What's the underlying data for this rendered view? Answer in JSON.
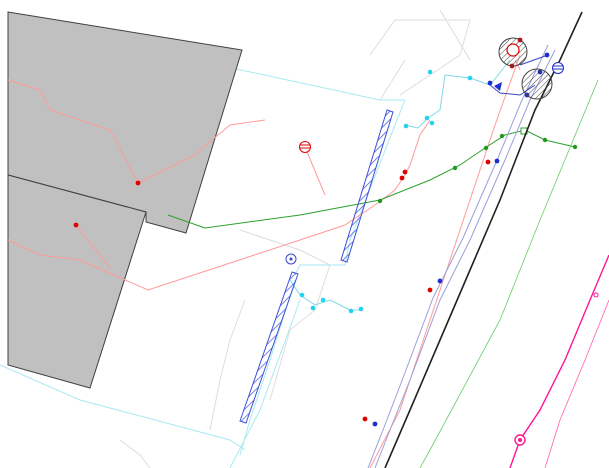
{
  "drawing": {
    "colors": {
      "background": "#ffffff",
      "building_fill": "#c0c0c0",
      "building_stroke": "#404040",
      "parcel_line": "#dddddd",
      "cyan_line": "#9de8ee",
      "cyan_node": "#22d3ee",
      "red_line": "#ff9a9a",
      "red_node": "#e00000",
      "blue_line": "#8a90d8",
      "blue_node": "#1e2fd0",
      "green_line": "#2ca02c",
      "green_thin": "#66cc66",
      "black_line": "#222222",
      "magenta_line": "#ff1493",
      "hatch": "#3c50d8"
    },
    "symbols": [
      "manhole-icon",
      "catch-basin-icon",
      "valve-icon",
      "hydrant-icon",
      "survey-point-icon"
    ]
  }
}
